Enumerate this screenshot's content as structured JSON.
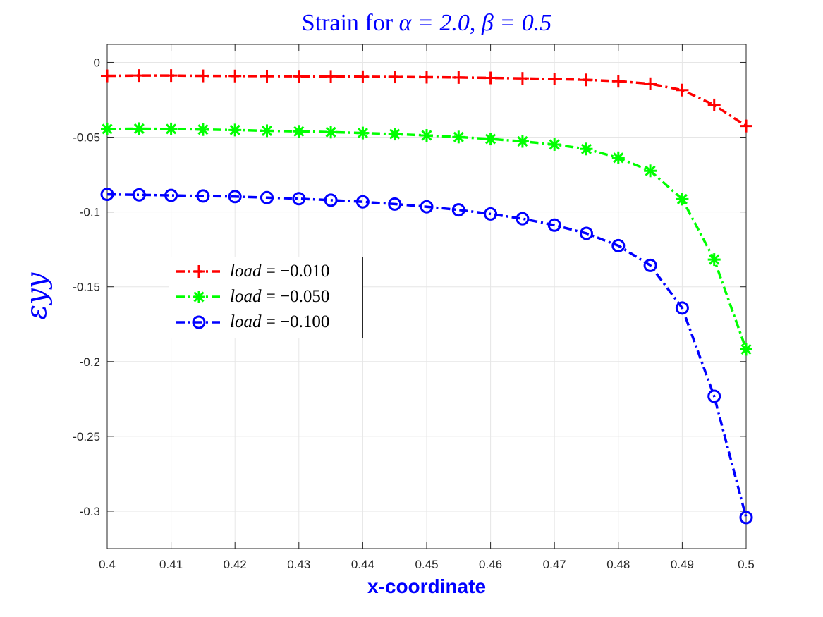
{
  "chart_data": {
    "type": "line",
    "title": "Strain for α = 2.0, β = 0.5",
    "title_parts": {
      "prefix": "Strain for ",
      "alpha": "α = 2.0",
      "separator": ", ",
      "beta": "β = 0.5"
    },
    "xlabel": "x-coordinate",
    "ylabel": "εyy",
    "xlim": [
      0.4,
      0.5
    ],
    "ylim": [
      -0.325,
      0.012
    ],
    "xticks": [
      0.4,
      0.41,
      0.42,
      0.43,
      0.44,
      0.45,
      0.46,
      0.47,
      0.48,
      0.49,
      0.5
    ],
    "xtick_labels": [
      "0.4",
      "0.41",
      "0.42",
      "0.43",
      "0.44",
      "0.45",
      "0.46",
      "0.47",
      "0.48",
      "0.49",
      "0.5"
    ],
    "yticks": [
      0,
      -0.05,
      -0.1,
      -0.15,
      -0.2,
      -0.25,
      -0.3
    ],
    "ytick_labels": [
      "0",
      "-0.05",
      "-0.1",
      "-0.15",
      "-0.2",
      "-0.25",
      "-0.3"
    ],
    "grid": true,
    "legend_location": "center-left",
    "x": [
      0.4,
      0.405,
      0.41,
      0.415,
      0.42,
      0.425,
      0.43,
      0.435,
      0.44,
      0.445,
      0.45,
      0.455,
      0.46,
      0.465,
      0.47,
      0.475,
      0.48,
      0.485,
      0.49,
      0.495,
      0.5
    ],
    "series": [
      {
        "name": "load = -0.010",
        "legend_var": "load",
        "legend_value": "= −0.010",
        "color": "#ff0000",
        "marker": "plus",
        "values": [
          -0.009,
          -0.0088,
          -0.0088,
          -0.009,
          -0.0091,
          -0.0092,
          -0.0093,
          -0.0094,
          -0.0096,
          -0.0097,
          -0.0099,
          -0.0101,
          -0.0104,
          -0.0107,
          -0.0111,
          -0.0117,
          -0.0126,
          -0.0143,
          -0.0185,
          -0.0285,
          -0.0425
        ]
      },
      {
        "name": "load = -0.050",
        "legend_var": "load",
        "legend_value": "= −0.050",
        "color": "#00ff00",
        "marker": "asterisk",
        "values": [
          -0.0445,
          -0.0443,
          -0.0445,
          -0.0449,
          -0.0452,
          -0.0457,
          -0.0461,
          -0.0466,
          -0.0472,
          -0.0479,
          -0.0488,
          -0.0499,
          -0.0512,
          -0.0528,
          -0.0549,
          -0.0579,
          -0.0638,
          -0.0725,
          -0.0914,
          -0.1318,
          -0.1918
        ]
      },
      {
        "name": "load = -0.100",
        "legend_var": "load",
        "legend_value": "= −0.100",
        "color": "#0000ff",
        "marker": "circle",
        "values": [
          -0.0882,
          -0.0885,
          -0.0889,
          -0.0893,
          -0.0897,
          -0.0904,
          -0.0911,
          -0.0921,
          -0.0932,
          -0.0947,
          -0.0965,
          -0.0986,
          -0.1013,
          -0.1045,
          -0.1088,
          -0.1143,
          -0.1225,
          -0.1357,
          -0.1642,
          -0.2232,
          -0.3042
        ]
      }
    ]
  }
}
